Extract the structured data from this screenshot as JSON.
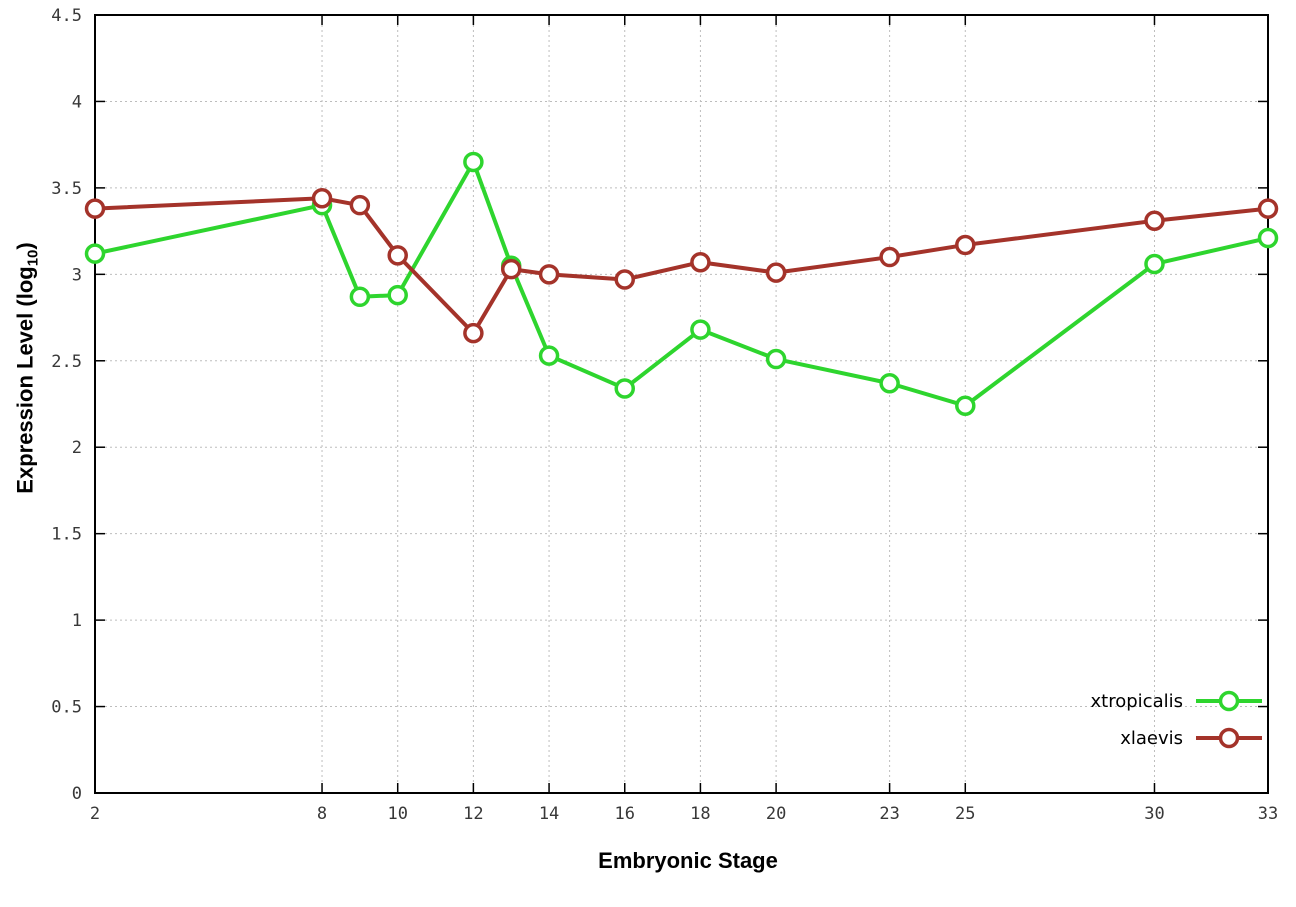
{
  "chart_data": {
    "type": "line",
    "title": "",
    "xlabel": "Embryonic Stage",
    "ylabel": "Expression Level (log10)",
    "ylabel_parts": {
      "main": "Expression Level (log",
      "sub": "10",
      "end": ")"
    },
    "x": [
      2,
      8,
      9,
      10,
      12,
      13,
      14,
      16,
      18,
      20,
      23,
      25,
      30,
      33
    ],
    "series": [
      {
        "name": "xtropicalis",
        "color": "#2ed52e",
        "values": [
          3.12,
          3.4,
          2.87,
          2.88,
          3.65,
          3.05,
          2.53,
          2.34,
          2.68,
          2.51,
          2.37,
          2.24,
          3.06,
          3.21
        ]
      },
      {
        "name": "xlaevis",
        "color": "#a4332a",
        "values": [
          3.38,
          3.44,
          3.4,
          3.11,
          2.66,
          3.03,
          3.0,
          2.97,
          3.07,
          3.01,
          3.1,
          3.17,
          3.31,
          3.38
        ]
      }
    ],
    "x_ticks": {
      "values": [
        2,
        8,
        10,
        12,
        14,
        16,
        18,
        20,
        23,
        25,
        30,
        33
      ],
      "labels": [
        "2",
        "8",
        "10",
        "12",
        "14",
        "16",
        "18",
        "20",
        "23",
        "25",
        "30",
        "33"
      ]
    },
    "y_ticks": {
      "values": [
        0,
        0.5,
        1,
        1.5,
        2,
        2.5,
        3,
        3.5,
        4,
        4.5
      ],
      "labels": [
        "0",
        "0.5",
        "1",
        "1.5",
        "2",
        "2.5",
        "3",
        "3.5",
        "4",
        "4.5"
      ]
    },
    "xlim": [
      2,
      33
    ],
    "ylim": [
      0,
      4.5
    ],
    "grid": true,
    "legend_position": "bottom-right",
    "marker": "open-circle",
    "colors": {
      "background": "#ffffff",
      "axis": "#000000",
      "grid": "#bdbdbd",
      "tick_text": "#383838",
      "legend_text": "#000000"
    }
  }
}
